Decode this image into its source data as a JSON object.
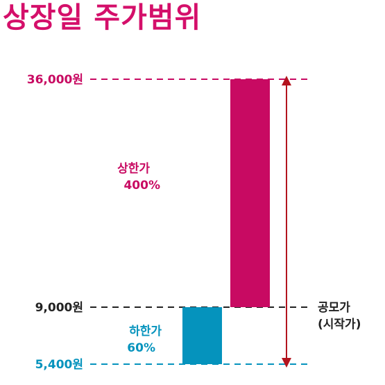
{
  "title": "상장일 주가범위",
  "colors": {
    "title": "#d40f6a",
    "upper": "#c80a62",
    "lower": "#0593bd",
    "ipo": "#222222",
    "arrow": "#b3141e"
  },
  "chart_data": {
    "type": "bar",
    "title": "상장일 주가범위",
    "xlabel": "",
    "ylabel": "",
    "ylim": [
      5400,
      36000
    ],
    "grid": false,
    "legend": "none",
    "reference_lines": [
      {
        "value": 36000,
        "label": "36,000원",
        "color": "#c80a62"
      },
      {
        "value": 9000,
        "label": "9,000원",
        "color": "#222222"
      },
      {
        "value": 5400,
        "label": "5,400원",
        "color": "#0593bd"
      }
    ],
    "series": [
      {
        "key": "upper",
        "from": 9000,
        "to": 36000,
        "label_line1": "상한가",
        "label_line2": "400%",
        "color": "#c80a62"
      },
      {
        "key": "lower",
        "from": 5400,
        "to": 9000,
        "label_line1": "하한가",
        "label_line2": "60%",
        "color": "#0593bd"
      }
    ],
    "ipo_price": {
      "value": 9000,
      "label_line1": "공모가",
      "label_line2": "(시작가)"
    }
  }
}
